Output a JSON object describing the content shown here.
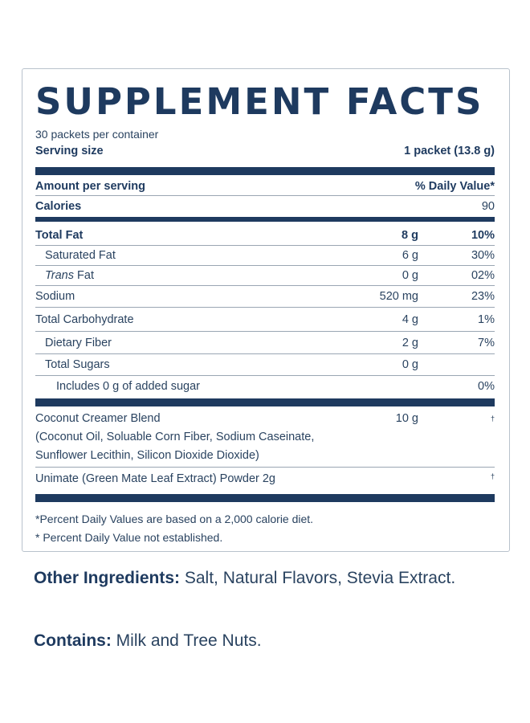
{
  "panel": {
    "title": "SUPPLEMENT FACTS",
    "servings_per_container": "30 packets per container",
    "serving_size_label": "Serving size",
    "serving_size_value": "1 packet (13.8 g)",
    "amount_per_serving": "Amount per serving",
    "daily_value_header": "% Daily Value*",
    "calories_label": "Calories",
    "calories_value": "90",
    "nutrients": [
      {
        "name": "Total Fat",
        "amount": "8 g",
        "dv": "10%"
      },
      {
        "name": "Saturated Fat",
        "amount": "6 g",
        "dv": "30%"
      },
      {
        "name_italic": "Trans",
        "name_rest": " Fat",
        "amount": "0 g",
        "dv": "02%"
      },
      {
        "name": "Sodium",
        "amount": "520 mg",
        "dv": "23%"
      },
      {
        "name": "Total Carbohydrate",
        "amount": "4 g",
        "dv": "1%"
      },
      {
        "name": "Dietary Fiber",
        "amount": "2 g",
        "dv": "7%"
      },
      {
        "name": "Total Sugars",
        "amount": "0 g",
        "dv": ""
      },
      {
        "name": "Includes 0 g of added sugar",
        "amount": "",
        "dv": "0%"
      }
    ],
    "blend": {
      "name": "Coconut Creamer Blend",
      "detail": "(Coconut Oil, Soluable Corn Fiber, Sodium Caseinate, Sunflower Lecithin, Silicon Dioxide Dioxide)",
      "amount": "10 g",
      "dv": "†"
    },
    "unimate": {
      "name": "Unimate (Green Mate Leaf Extract) Powder 2g",
      "dv": "†"
    },
    "footnotes": [
      "*Percent Daily Values are based on a 2,000 calorie diet.",
      "* Percent Daily Value not established."
    ]
  },
  "other_ingredients": {
    "label": "Other Ingredients:",
    "text": " Salt, Natural Flavors, Stevia Extract."
  },
  "contains": {
    "label": "Contains:",
    "text": " Milk and Tree Nuts."
  }
}
